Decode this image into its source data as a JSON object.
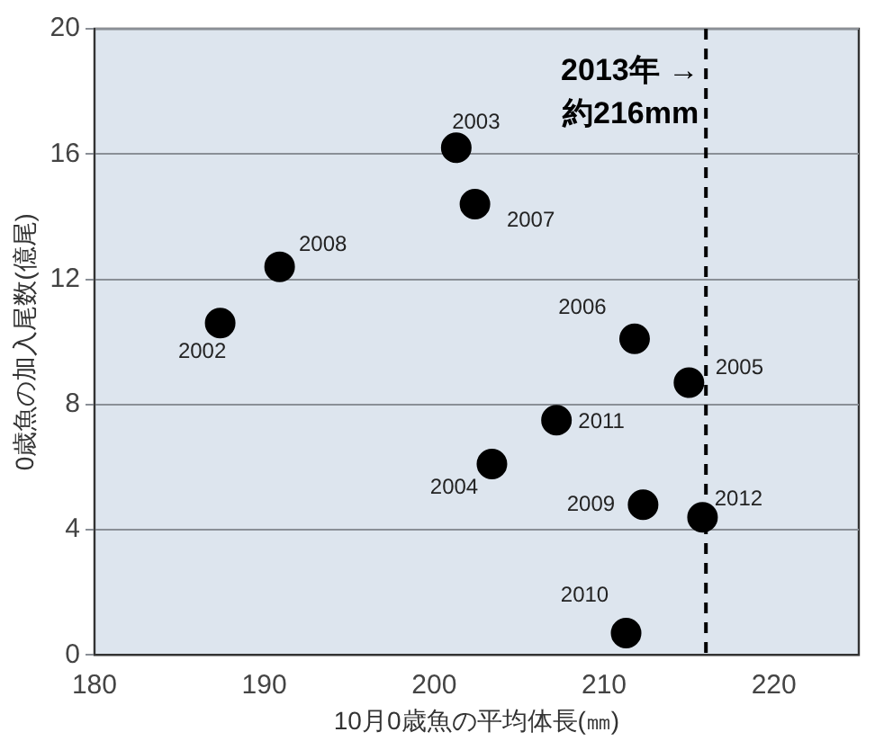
{
  "chart_data": {
    "type": "scatter",
    "xlabel": "10月0歳魚の平均体長(㎜)",
    "ylabel": "0歳魚の加入尾数(億尾)",
    "x": [
      187.4,
      201.3,
      203.4,
      215.0,
      211.8,
      202.4,
      190.9,
      212.3,
      211.3,
      207.2,
      215.8
    ],
    "series": [
      {
        "color": "#000000",
        "values": [
          10.6,
          16.2,
          6.1,
          8.7,
          10.1,
          14.4,
          12.4,
          4.8,
          0.7,
          7.5,
          4.4
        ]
      }
    ],
    "xlim": [
      180,
      225
    ],
    "xticks": [
      180,
      190,
      200,
      210,
      220
    ],
    "ylim": [
      0,
      20
    ],
    "yticks": [
      0,
      4,
      8,
      12,
      16,
      20
    ],
    "grid": "y",
    "marker": "circle",
    "legend": false,
    "ref_lines": [
      {
        "axis": "x",
        "value": 216,
        "label": "2013年 →\n約216mm",
        "color": "#000000",
        "line_style": "dashed"
      }
    ],
    "annotations": [
      {
        "text": "2002",
        "x": 187.4,
        "y": 10.6
      },
      {
        "text": "2003",
        "x": 201.3,
        "y": 16.2
      },
      {
        "text": "2004",
        "x": 203.4,
        "y": 6.1
      },
      {
        "text": "2005",
        "x": 215.0,
        "y": 8.7
      },
      {
        "text": "2006",
        "x": 211.8,
        "y": 10.1
      },
      {
        "text": "2007",
        "x": 202.4,
        "y": 14.4
      },
      {
        "text": "2008",
        "x": 190.9,
        "y": 12.4
      },
      {
        "text": "2009",
        "x": 212.3,
        "y": 4.8
      },
      {
        "text": "2010",
        "x": 211.3,
        "y": 0.7
      },
      {
        "text": "2011",
        "x": 207.2,
        "y": 7.5
      },
      {
        "text": "2012",
        "x": 215.8,
        "y": 4.4
      }
    ]
  }
}
